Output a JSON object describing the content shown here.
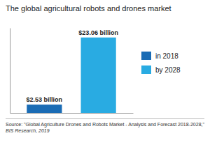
{
  "chart_data": {
    "type": "bar",
    "title": "The global agricultural robots and drones market",
    "categories": [
      null
    ],
    "series": [
      {
        "name": "in 2018",
        "color": "#1a6cb5",
        "values": [
          2.53
        ],
        "value_labels": [
          "$2.53 billion"
        ]
      },
      {
        "name": "by 2028",
        "color": "#29abe2",
        "values": [
          23.06
        ],
        "value_labels": [
          "$23.06 billion"
        ]
      }
    ],
    "ylim": [
      0,
      26
    ],
    "data_labels": true,
    "tick_labels": false,
    "legend": "right",
    "grid": false,
    "annotations": [
      "Source: \"Global Agriculture Drones and Robots Market - Analysis and Forecast 2018-2028,\"",
      "BIS Research, 2019"
    ]
  }
}
